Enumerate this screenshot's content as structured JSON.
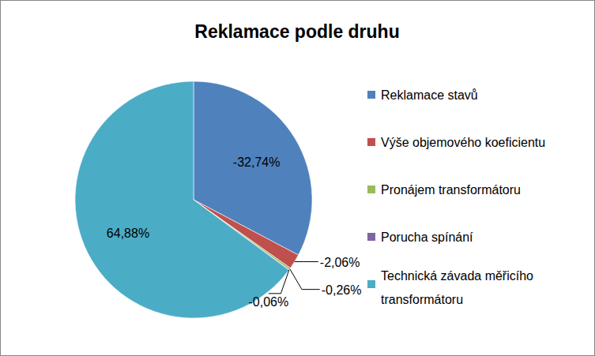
{
  "chart_data": {
    "type": "pie",
    "title": "Reklamace podle druhu",
    "categories": [
      "Reklamace stavů",
      "Výše objemového koeficientu",
      "Pronájem transformátoru",
      "Porucha spínání",
      "Technická závada měřicího transformátoru"
    ],
    "values": [
      -32.74,
      -2.06,
      -0.26,
      -0.06,
      64.88
    ],
    "value_labels": [
      "-32,74%",
      "-2,06%",
      "-0,26%",
      "-0,06%",
      "64,88%"
    ],
    "colors": [
      "#4f81bd",
      "#c0504d",
      "#9bbb59",
      "#8064a2",
      "#4bacc6"
    ],
    "legend": "right",
    "data_labels": true
  }
}
